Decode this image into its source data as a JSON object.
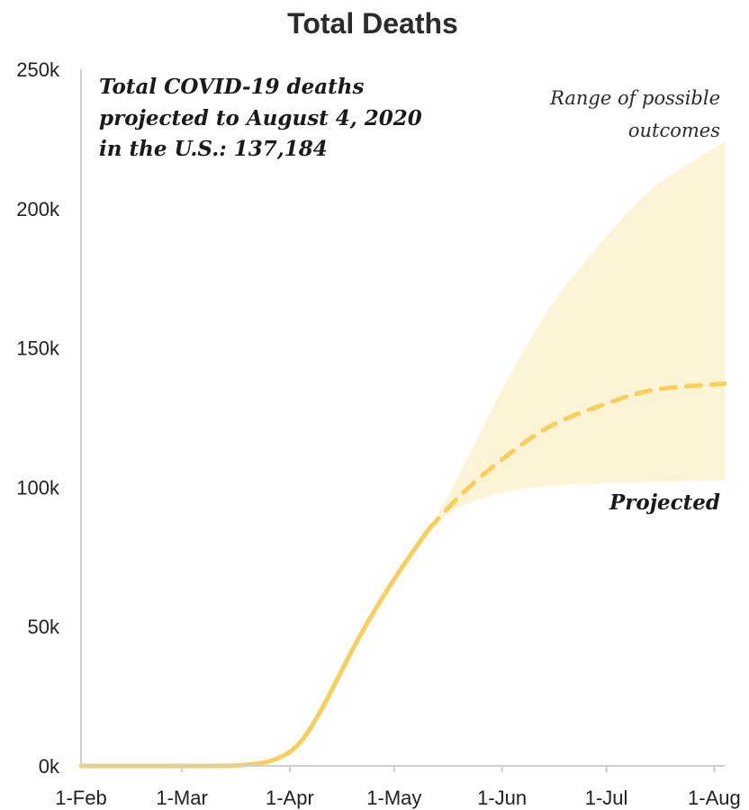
{
  "chart_data": {
    "type": "line",
    "title": "Total Deaths",
    "xlabel": "",
    "ylabel": "",
    "x_tick_labels": [
      "1-Feb",
      "1-Mar",
      "1-Apr",
      "1-May",
      "1-Jun",
      "1-Jul",
      "1-Aug"
    ],
    "x_tick_dates": [
      "2020-02-01",
      "2020-03-01",
      "2020-04-01",
      "2020-05-01",
      "2020-06-01",
      "2020-07-01",
      "2020-08-01"
    ],
    "y_tick_labels": [
      "0k",
      "50k",
      "100k",
      "150k",
      "200k",
      "250k"
    ],
    "y_tick_values": [
      0,
      50000,
      100000,
      150000,
      200000,
      250000
    ],
    "xlim": [
      "2020-02-01",
      "2020-08-04"
    ],
    "ylim": [
      0,
      250000
    ],
    "grid": false,
    "annotations": {
      "main": [
        "Total COVID-19 deaths",
        "projected to August 4, 2020",
        "in the U.S.: 137,184"
      ],
      "range": [
        "Range of possible",
        "outcomes"
      ],
      "projected": "Projected"
    },
    "colors": {
      "line": "#f7cf5a",
      "band": "#fdf3d6",
      "axis": "#cfcfcf"
    },
    "series": [
      {
        "style": "solid",
        "points": [
          [
            "2020-02-01",
            0
          ],
          [
            "2020-03-01",
            0
          ],
          [
            "2020-03-15",
            100
          ],
          [
            "2020-03-22",
            700
          ],
          [
            "2020-03-27",
            2000
          ],
          [
            "2020-04-01",
            5000
          ],
          [
            "2020-04-05",
            10000
          ],
          [
            "2020-04-10",
            20000
          ],
          [
            "2020-04-15",
            32000
          ],
          [
            "2020-04-20",
            44000
          ],
          [
            "2020-04-25",
            55000
          ],
          [
            "2020-05-01",
            67000
          ],
          [
            "2020-05-07",
            78000
          ],
          [
            "2020-05-11",
            85000
          ]
        ]
      },
      {
        "style": "dashed",
        "points": [
          [
            "2020-05-11",
            85000
          ],
          [
            "2020-05-20",
            97000
          ],
          [
            "2020-06-01",
            110000
          ],
          [
            "2020-06-15",
            122000
          ],
          [
            "2020-07-01",
            130000
          ],
          [
            "2020-07-15",
            135000
          ],
          [
            "2020-08-04",
            137184
          ]
        ]
      }
    ],
    "range_band": {
      "upper": [
        [
          "2020-05-11",
          85000
        ],
        [
          "2020-05-20",
          105000
        ],
        [
          "2020-06-01",
          135000
        ],
        [
          "2020-06-15",
          165000
        ],
        [
          "2020-07-01",
          190000
        ],
        [
          "2020-07-15",
          208000
        ],
        [
          "2020-08-04",
          224000
        ]
      ],
      "lower": [
        [
          "2020-05-11",
          85000
        ],
        [
          "2020-05-20",
          93000
        ],
        [
          "2020-06-01",
          98000
        ],
        [
          "2020-06-15",
          100500
        ],
        [
          "2020-07-01",
          101500
        ],
        [
          "2020-07-15",
          102000
        ],
        [
          "2020-08-04",
          102500
        ]
      ]
    }
  }
}
